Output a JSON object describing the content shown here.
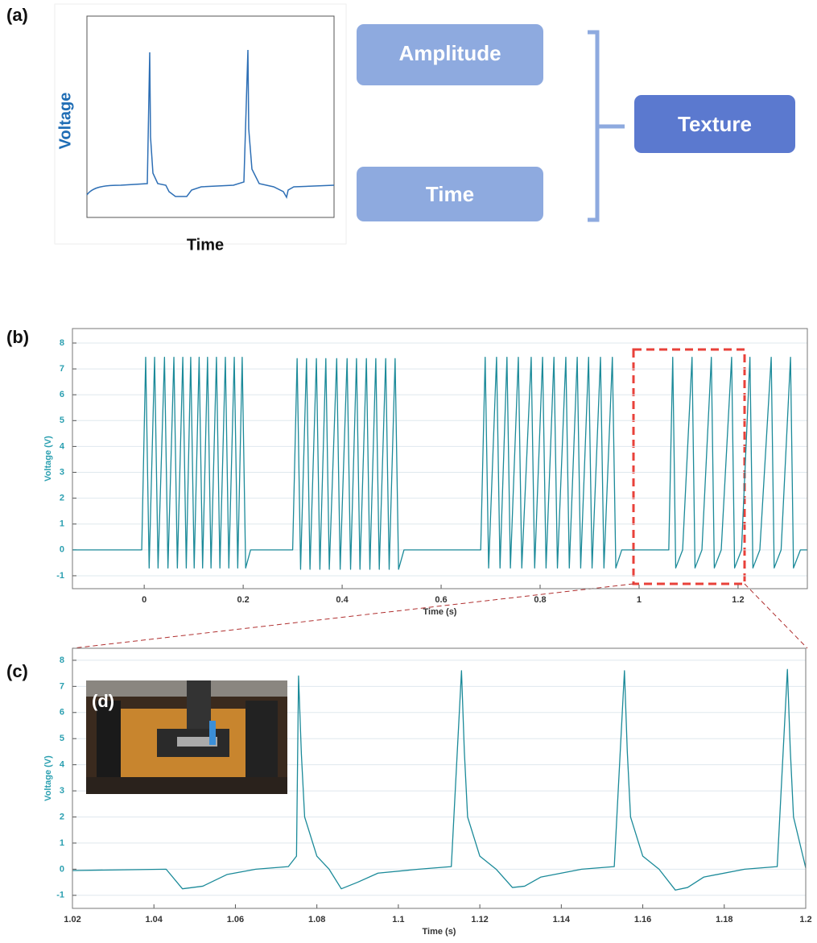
{
  "panels": {
    "a": "(a)",
    "b": "(b)",
    "c": "(c)",
    "d": "(d)"
  },
  "diagram": {
    "y_label": "Voltage",
    "x_label": "Time",
    "features": [
      "Amplitude",
      "Time"
    ],
    "result": "Texture"
  },
  "chart_data": [
    {
      "type": "line",
      "x_label": "Time (s)",
      "y_label": "Voltage (V)",
      "xlim": [
        -0.145,
        1.34
      ],
      "ylim": [
        -1.5,
        8.56
      ],
      "xticks": [
        0,
        0.2,
        0.4,
        0.6,
        0.8,
        1,
        1.2
      ],
      "yticks": [
        -1,
        0,
        1,
        2,
        3,
        4,
        5,
        6,
        7,
        8
      ],
      "grid": true,
      "x": [
        -0.145,
        -0.005,
        0.003,
        0.01,
        0.021,
        0.028,
        0.041,
        0.048,
        0.06,
        0.067,
        0.078,
        0.085,
        0.094,
        0.101,
        0.111,
        0.118,
        0.128,
        0.135,
        0.146,
        0.153,
        0.164,
        0.171,
        0.182,
        0.189,
        0.198,
        0.205,
        0.215,
        0.3,
        0.309,
        0.316,
        0.328,
        0.335,
        0.348,
        0.355,
        0.367,
        0.374,
        0.389,
        0.396,
        0.41,
        0.417,
        0.429,
        0.436,
        0.449,
        0.456,
        0.468,
        0.475,
        0.488,
        0.495,
        0.507,
        0.514,
        0.525,
        0.68,
        0.689,
        0.696,
        0.712,
        0.719,
        0.733,
        0.74,
        0.756,
        0.763,
        0.782,
        0.789,
        0.805,
        0.812,
        0.828,
        0.835,
        0.852,
        0.859,
        0.875,
        0.882,
        0.898,
        0.905,
        0.922,
        0.929,
        0.946,
        0.953,
        0.965,
        1.06,
        1.068,
        1.074,
        1.088,
        1.107,
        1.113,
        1.127,
        1.146,
        1.152,
        1.166,
        1.187,
        1.193,
        1.207,
        1.224,
        1.23,
        1.244,
        1.267,
        1.273,
        1.287,
        1.306,
        1.312,
        1.326,
        1.34
      ],
      "series": [
        {
          "color": "#1b8a99",
          "values": [
            0,
            0,
            7.45,
            -0.7,
            7.45,
            -0.7,
            7.45,
            -0.7,
            7.45,
            -0.7,
            7.45,
            -0.7,
            7.45,
            -0.7,
            7.45,
            -0.7,
            7.45,
            -0.7,
            7.45,
            -0.7,
            7.45,
            -0.7,
            7.45,
            -0.7,
            7.45,
            -0.7,
            0,
            0,
            7.4,
            -0.75,
            7.4,
            -0.75,
            7.4,
            -0.75,
            7.4,
            -0.75,
            7.4,
            -0.75,
            7.4,
            -0.75,
            7.4,
            -0.75,
            7.4,
            -0.75,
            7.4,
            -0.75,
            7.4,
            -0.75,
            7.4,
            -0.75,
            0,
            0,
            7.45,
            -0.7,
            7.45,
            -0.7,
            7.45,
            -0.7,
            7.45,
            -0.7,
            7.45,
            -0.7,
            7.45,
            -0.7,
            7.45,
            -0.7,
            7.45,
            -0.7,
            7.45,
            -0.7,
            7.45,
            -0.7,
            7.45,
            -0.7,
            7.45,
            -0.7,
            0,
            0,
            7.45,
            -0.7,
            0,
            7.45,
            -0.7,
            0,
            7.45,
            -0.7,
            0,
            7.45,
            -0.7,
            0,
            7.45,
            -0.7,
            0,
            7.45,
            -0.7,
            0,
            7.45,
            -0.7,
            0,
            0
          ]
        }
      ]
    },
    {
      "type": "line",
      "x_label": "Time (s)",
      "y_label": "Voltage (V)",
      "xlim": [
        1.02,
        1.2
      ],
      "ylim": [
        -1.5,
        8.46
      ],
      "xticks": [
        1.02,
        1.04,
        1.06,
        1.08,
        1.1,
        1.12,
        1.14,
        1.16,
        1.18,
        1.2
      ],
      "yticks": [
        -1,
        0,
        1,
        2,
        3,
        4,
        5,
        6,
        7,
        8
      ],
      "grid": true,
      "x": [
        1.02,
        1.043,
        1.047,
        1.052,
        1.058,
        1.065,
        1.073,
        1.075,
        1.0755,
        1.0762,
        1.077,
        1.08,
        1.083,
        1.086,
        1.09,
        1.095,
        1.105,
        1.113,
        1.1155,
        1.1162,
        1.117,
        1.12,
        1.124,
        1.128,
        1.131,
        1.135,
        1.145,
        1.153,
        1.1555,
        1.1562,
        1.157,
        1.16,
        1.164,
        1.168,
        1.171,
        1.175,
        1.185,
        1.193,
        1.1955,
        1.1962,
        1.197,
        1.2
      ],
      "series": [
        {
          "color": "#1b8a99",
          "values": [
            -0.05,
            0,
            -0.75,
            -0.65,
            -0.2,
            0,
            0.1,
            0.5,
            7.4,
            4.4,
            2,
            0.5,
            0,
            -0.75,
            -0.5,
            -0.15,
            0,
            0.1,
            7.6,
            4.5,
            2,
            0.5,
            0,
            -0.7,
            -0.65,
            -0.3,
            0,
            0.1,
            7.6,
            4.5,
            2,
            0.5,
            0,
            -0.8,
            -0.7,
            -0.3,
            0,
            0.1,
            7.65,
            4.6,
            2,
            0.05
          ]
        }
      ]
    }
  ]
}
